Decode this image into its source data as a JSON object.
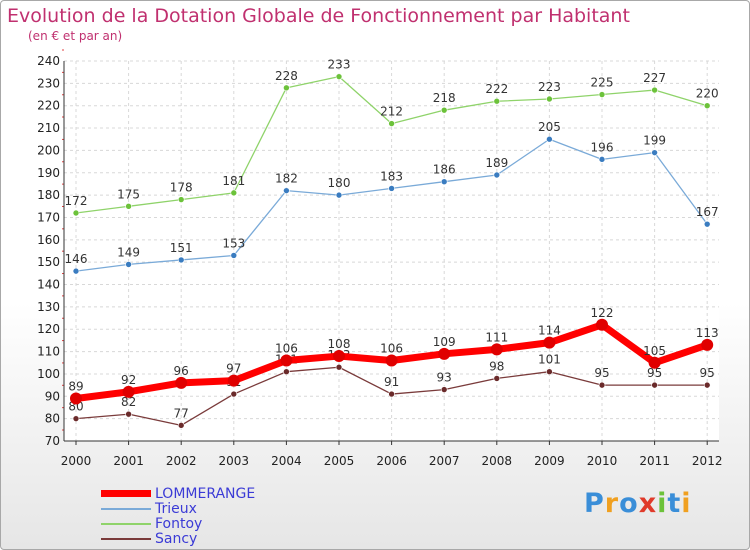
{
  "header": {
    "title": "Evolution de la Dotation Globale de Fonctionnement par Habitant",
    "subtitle": "(en € et par an)"
  },
  "logo": {
    "letters": [
      "P",
      "r",
      "o",
      "x",
      "i",
      "t",
      "i"
    ],
    "colors": [
      "#3a8ed8",
      "#f0a020",
      "#3a8ed8",
      "#e03a2a",
      "#6cc23a",
      "#3a8ed8",
      "#f0a020"
    ]
  },
  "chart_data": {
    "type": "line",
    "title": "Evolution de la Dotation Globale de Fonctionnement par Habitant",
    "subtitle": "(en € et par an)",
    "xlabel": "",
    "ylabel": "",
    "x": [
      "2000",
      "2001",
      "2002",
      "2003",
      "2004",
      "2005",
      "2006",
      "2007",
      "2008",
      "2009",
      "2010",
      "2011",
      "2012"
    ],
    "ylim": [
      70,
      240
    ],
    "yticks": [
      70,
      80,
      90,
      100,
      110,
      120,
      130,
      140,
      150,
      160,
      170,
      180,
      190,
      200,
      210,
      220,
      230,
      240
    ],
    "grid": true,
    "legend": "bottom-left",
    "series": [
      {
        "name": "Fontoy",
        "color": "#8fd36a",
        "marker": "#6cc23a",
        "width": 1.3,
        "radius": 3,
        "values": [
          172,
          175,
          178,
          181,
          228,
          233,
          212,
          218,
          222,
          223,
          225,
          227,
          220
        ]
      },
      {
        "name": "Trieux",
        "color": "#7aaad8",
        "marker": "#3a7cc0",
        "width": 1.3,
        "radius": 3,
        "values": [
          146,
          149,
          151,
          153,
          182,
          180,
          183,
          186,
          189,
          205,
          196,
          199,
          167
        ]
      },
      {
        "name": "Sancy",
        "color": "#7a3b3b",
        "marker": "#6a2a2a",
        "width": 1.3,
        "radius": 3,
        "values": [
          80,
          82,
          77,
          91,
          101,
          103,
          91,
          93,
          98,
          101,
          95,
          95,
          95
        ]
      },
      {
        "name": "LOMMERANGE",
        "color": "#ff0000",
        "marker": "#e00000",
        "width": 7,
        "radius": 6,
        "values": [
          89,
          92,
          96,
          97,
          106,
          108,
          106,
          109,
          111,
          114,
          122,
          105,
          113
        ]
      }
    ],
    "legend_order": [
      "LOMMERANGE",
      "Trieux",
      "Fontoy",
      "Sancy"
    ]
  }
}
